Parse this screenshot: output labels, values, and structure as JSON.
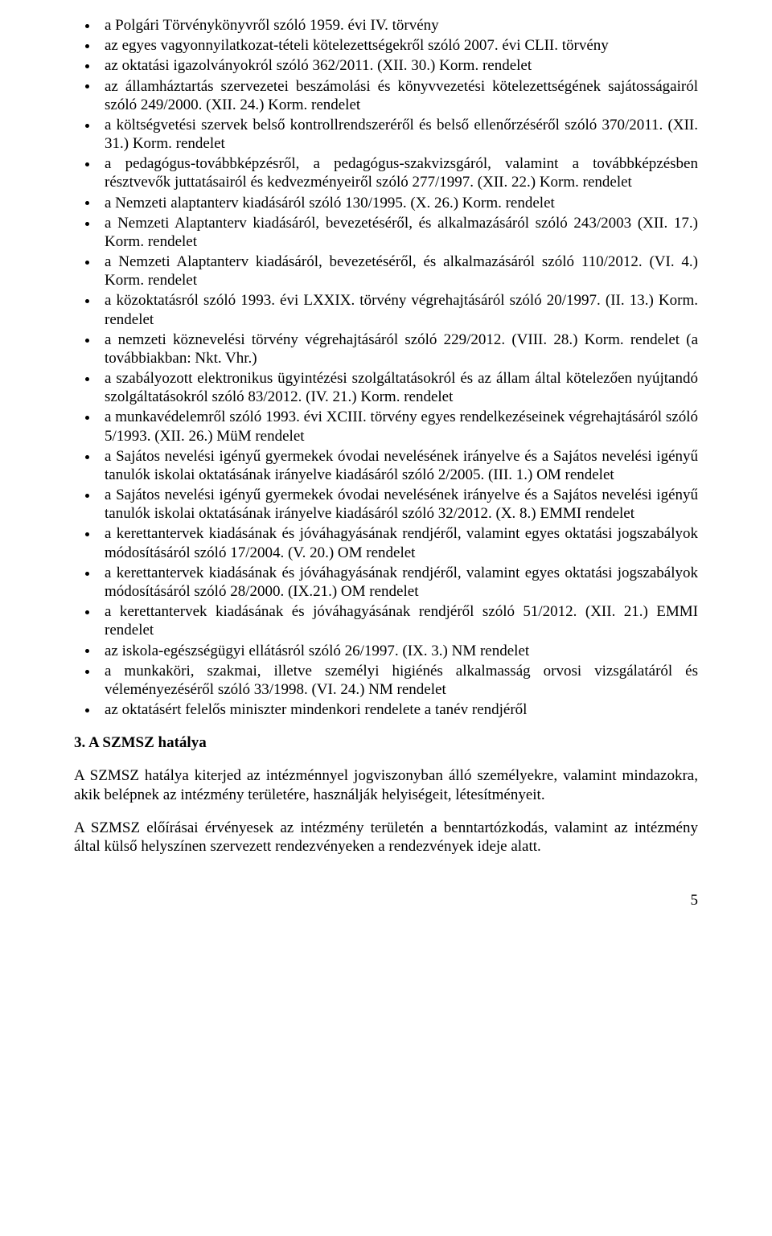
{
  "bullets": [
    "a Polgári Törvénykönyvről szóló 1959. évi IV. törvény",
    "az egyes vagyonnyilatkozat-tételi kötelezettségekről szóló 2007. évi CLII. törvény",
    "az oktatási igazolványokról szóló 362/2011. (XII. 30.) Korm. rendelet",
    "az államháztartás szervezetei beszámolási és könyvvezetési kötelezettségének sajátosságairól szóló 249/2000. (XII. 24.) Korm. rendelet",
    "a költségvetési szervek belső kontrollrendszeréről és belső ellenőrzéséről szóló 370/2011. (XII. 31.) Korm. rendelet",
    "a pedagógus-továbbképzésről, a pedagógus-szakvizsgáról, valamint a továbbképzésben résztvevők juttatásairól és kedvezményeiről szóló 277/1997. (XII. 22.) Korm. rendelet",
    "a Nemzeti alaptanterv kiadásáról szóló 130/1995. (X. 26.) Korm. rendelet",
    "a Nemzeti Alaptanterv kiadásáról, bevezetéséről, és alkalmazásáról szóló 243/2003 (XII. 17.) Korm. rendelet",
    "a Nemzeti Alaptanterv kiadásáról, bevezetéséről, és alkalmazásáról szóló 110/2012. (VI. 4.) Korm. rendelet",
    "a közoktatásról szóló 1993. évi LXXIX. törvény végrehajtásáról szóló 20/1997. (II. 13.) Korm. rendelet",
    "a nemzeti köznevelési törvény végrehajtásáról szóló 229/2012. (VIII. 28.) Korm. rendelet (a továbbiakban: Nkt. Vhr.)",
    "a szabályozott elektronikus ügyintézési szolgáltatásokról és az állam által kötelezően nyújtandó szolgáltatásokról szóló 83/2012. (IV. 21.) Korm. rendelet",
    "a munkavédelemről szóló 1993. évi XCIII. törvény egyes rendelkezéseinek végrehajtásáról szóló 5/1993. (XII. 26.) MüM rendelet",
    "a Sajátos nevelési igényű gyermekek óvodai nevelésének irányelve és a Sajátos nevelési igényű tanulók iskolai oktatásának irányelve kiadásáról szóló 2/2005. (III. 1.) OM rendelet",
    "a Sajátos nevelési igényű gyermekek óvodai nevelésének irányelve és a Sajátos nevelési igényű tanulók iskolai oktatásának irányelve kiadásáról szóló 32/2012. (X. 8.) EMMI rendelet",
    "a kerettantervek kiadásának és jóváhagyásának rendjéről, valamint egyes oktatási jogszabályok módosításáról szóló 17/2004. (V. 20.) OM rendelet",
    "a kerettantervek kiadásának és jóváhagyásának rendjéről, valamint egyes oktatási jogszabályok módosításáról szóló 28/2000. (IX.21.) OM rendelet",
    "a kerettantervek kiadásának és jóváhagyásának rendjéről szóló 51/2012. (XII. 21.) EMMI rendelet",
    "az iskola-egészségügyi ellátásról szóló 26/1997. (IX. 3.) NM rendelet",
    "a munkaköri, szakmai, illetve személyi higiénés alkalmasság orvosi vizsgálatáról és véleményezéséről szóló 33/1998. (VI. 24.) NM rendelet",
    "az oktatásért felelős miniszter mindenkori rendelete a tanév rendjéről"
  ],
  "section_heading": "3. A SZMSZ hatálya",
  "paragraphs": [
    "A SZMSZ hatálya kiterjed az intézménnyel jogviszonyban álló személyekre, valamint mindazokra, akik belépnek az intézmény területére, használják helyiségeit, létesítményeit.",
    "A SZMSZ előírásai érvényesek az intézmény területén a benntartózkodás, valamint az intézmény által külső helyszínen szervezett rendezvényeken a rendezvények ideje alatt."
  ],
  "page_number": "5"
}
